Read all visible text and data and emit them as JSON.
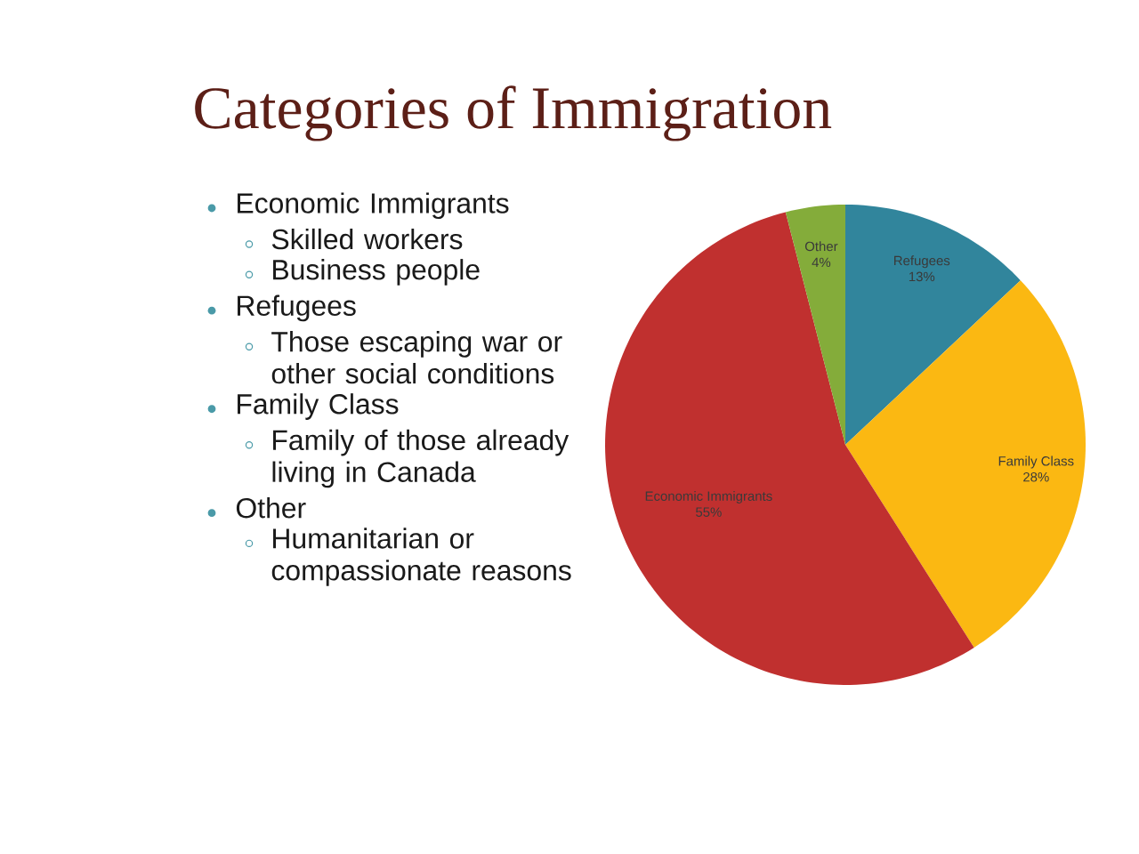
{
  "chart_data": {
    "type": "pie",
    "title": "Categories of Immigration",
    "categories": [
      "Refugees",
      "Family Class",
      "Economic Immigrants",
      "Other"
    ],
    "values": [
      13,
      28,
      55,
      4
    ],
    "value_labels": [
      "13%",
      "28%",
      "55%",
      "4%"
    ],
    "colors": [
      "#31859c",
      "#fbb812",
      "#c0302f",
      "#84ac3a"
    ],
    "annotations": [
      "Economic Immigrants",
      "Skilled workers",
      "Business people",
      "Refugees",
      "Those escaping  war or other social conditions",
      "Family Class",
      "Family of those already living in Canada",
      "Other",
      "Humanitarian or compassionate reasons"
    ]
  }
}
